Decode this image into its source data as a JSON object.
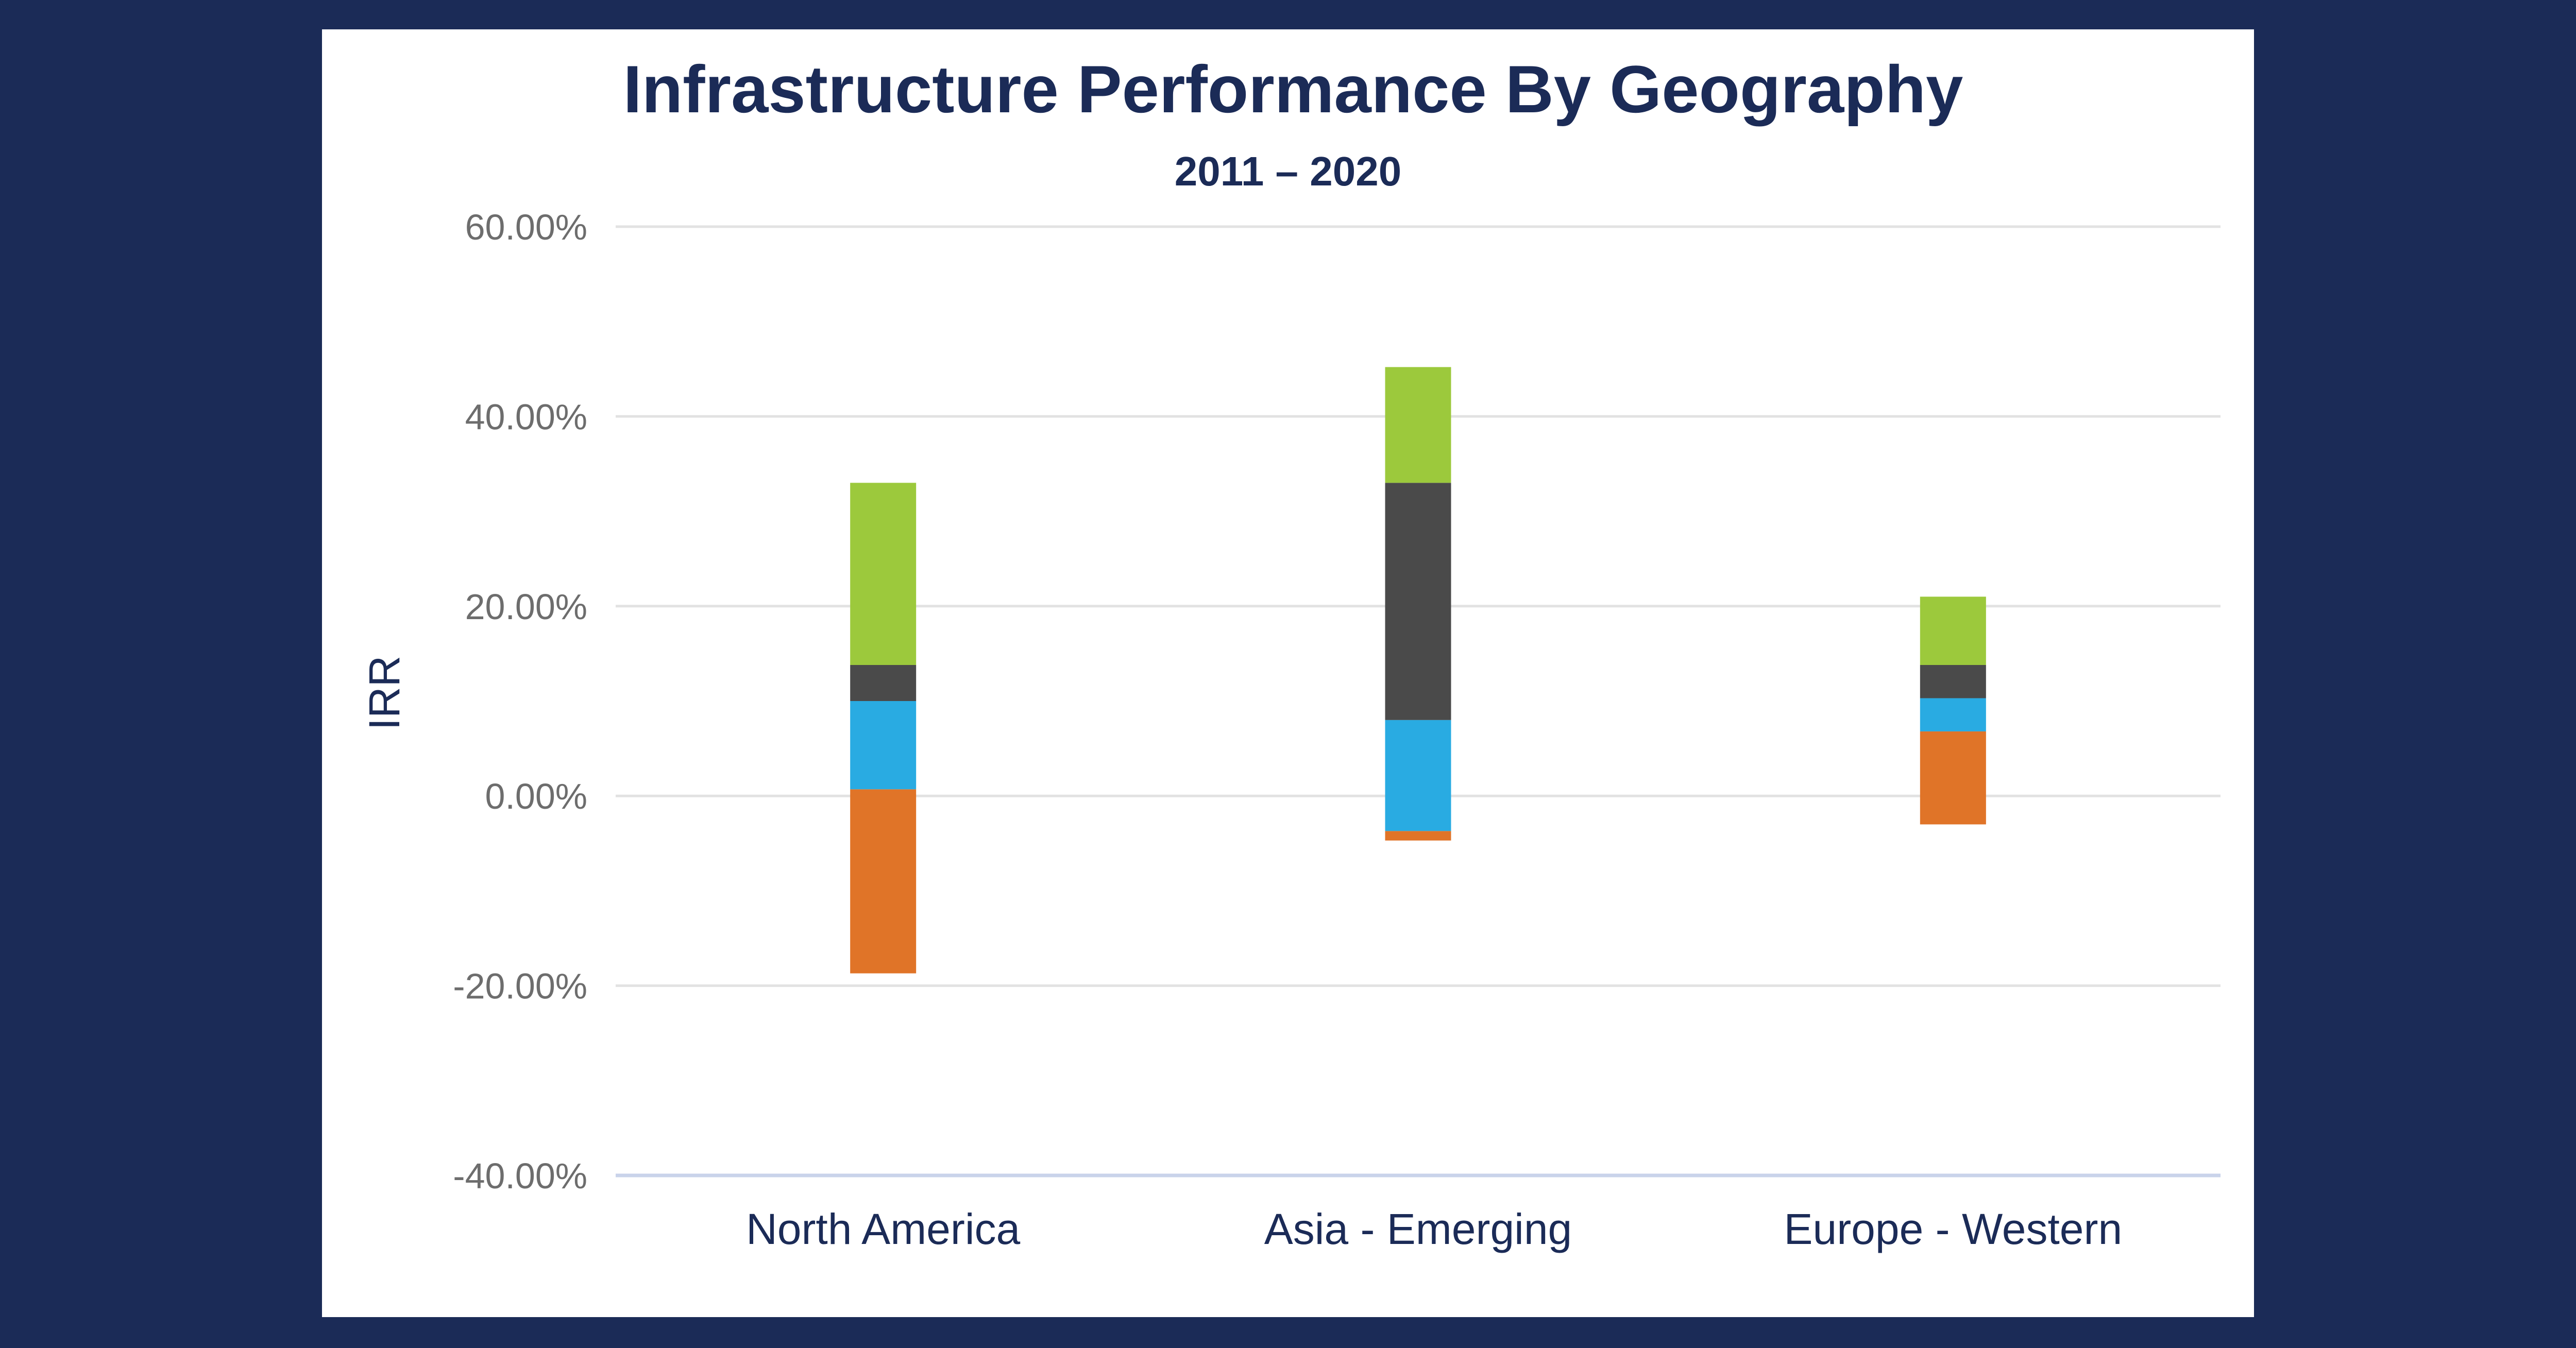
{
  "chart_data": {
    "type": "bar",
    "stacked": true,
    "title": "Infrastructure Performance By Geography",
    "subtitle": "2011 – 2020",
    "ylabel": "IRR",
    "xlabel": "",
    "ylim": [
      -40,
      60
    ],
    "y_ticks": [
      {
        "value": 60,
        "label": "60.00%"
      },
      {
        "value": 40,
        "label": "40.00%"
      },
      {
        "value": 20,
        "label": "20.00%"
      },
      {
        "value": 0,
        "label": "0.00%"
      },
      {
        "value": -20,
        "label": "-20.00%"
      },
      {
        "value": -40,
        "label": "-40.00%"
      }
    ],
    "grid": true,
    "legend": "none",
    "categories": [
      "North America",
      "Asia - Emerging",
      "Europe - Western"
    ],
    "segments": [
      {
        "color": "#e07428",
        "ranges": [
          [
            -18.7,
            0.7
          ],
          [
            -4.7,
            -3.7
          ],
          [
            -3.0,
            6.8
          ]
        ]
      },
      {
        "color": "#29abe2",
        "ranges": [
          [
            0.7,
            10.0
          ],
          [
            -3.7,
            8.0
          ],
          [
            6.8,
            10.3
          ]
        ]
      },
      {
        "color": "#4a4a4a",
        "ranges": [
          [
            10.0,
            13.8
          ],
          [
            8.0,
            33.0
          ],
          [
            10.3,
            13.8
          ]
        ]
      },
      {
        "color": "#9cc93c",
        "ranges": [
          [
            13.8,
            33.0
          ],
          [
            33.0,
            45.2
          ],
          [
            13.8,
            21.0
          ]
        ]
      }
    ]
  }
}
